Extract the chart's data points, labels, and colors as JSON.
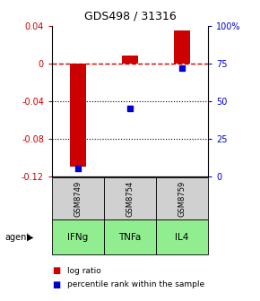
{
  "title": "GDS498 / 31316",
  "bar_values": [
    -0.11,
    0.008,
    0.035
  ],
  "percentile_values": [
    5,
    45,
    72
  ],
  "categories": [
    "GSM8749",
    "GSM8754",
    "GSM8759"
  ],
  "agents": [
    "IFNg",
    "TNFa",
    "IL4"
  ],
  "bar_color": "#cc0000",
  "point_color": "#0000cc",
  "ylim_left": [
    -0.12,
    0.04
  ],
  "ylim_right": [
    0,
    100
  ],
  "yticks_left": [
    0.04,
    0,
    -0.04,
    -0.08,
    -0.12
  ],
  "yticks_right": [
    100,
    75,
    50,
    25,
    0
  ],
  "bar_width": 0.3,
  "background_color": "#ffffff",
  "plot_bg": "#ffffff",
  "gray_box_color": "#d0d0d0",
  "green_box_color": "#90ee90",
  "legend_red": "log ratio",
  "legend_blue": "percentile rank within the sample"
}
